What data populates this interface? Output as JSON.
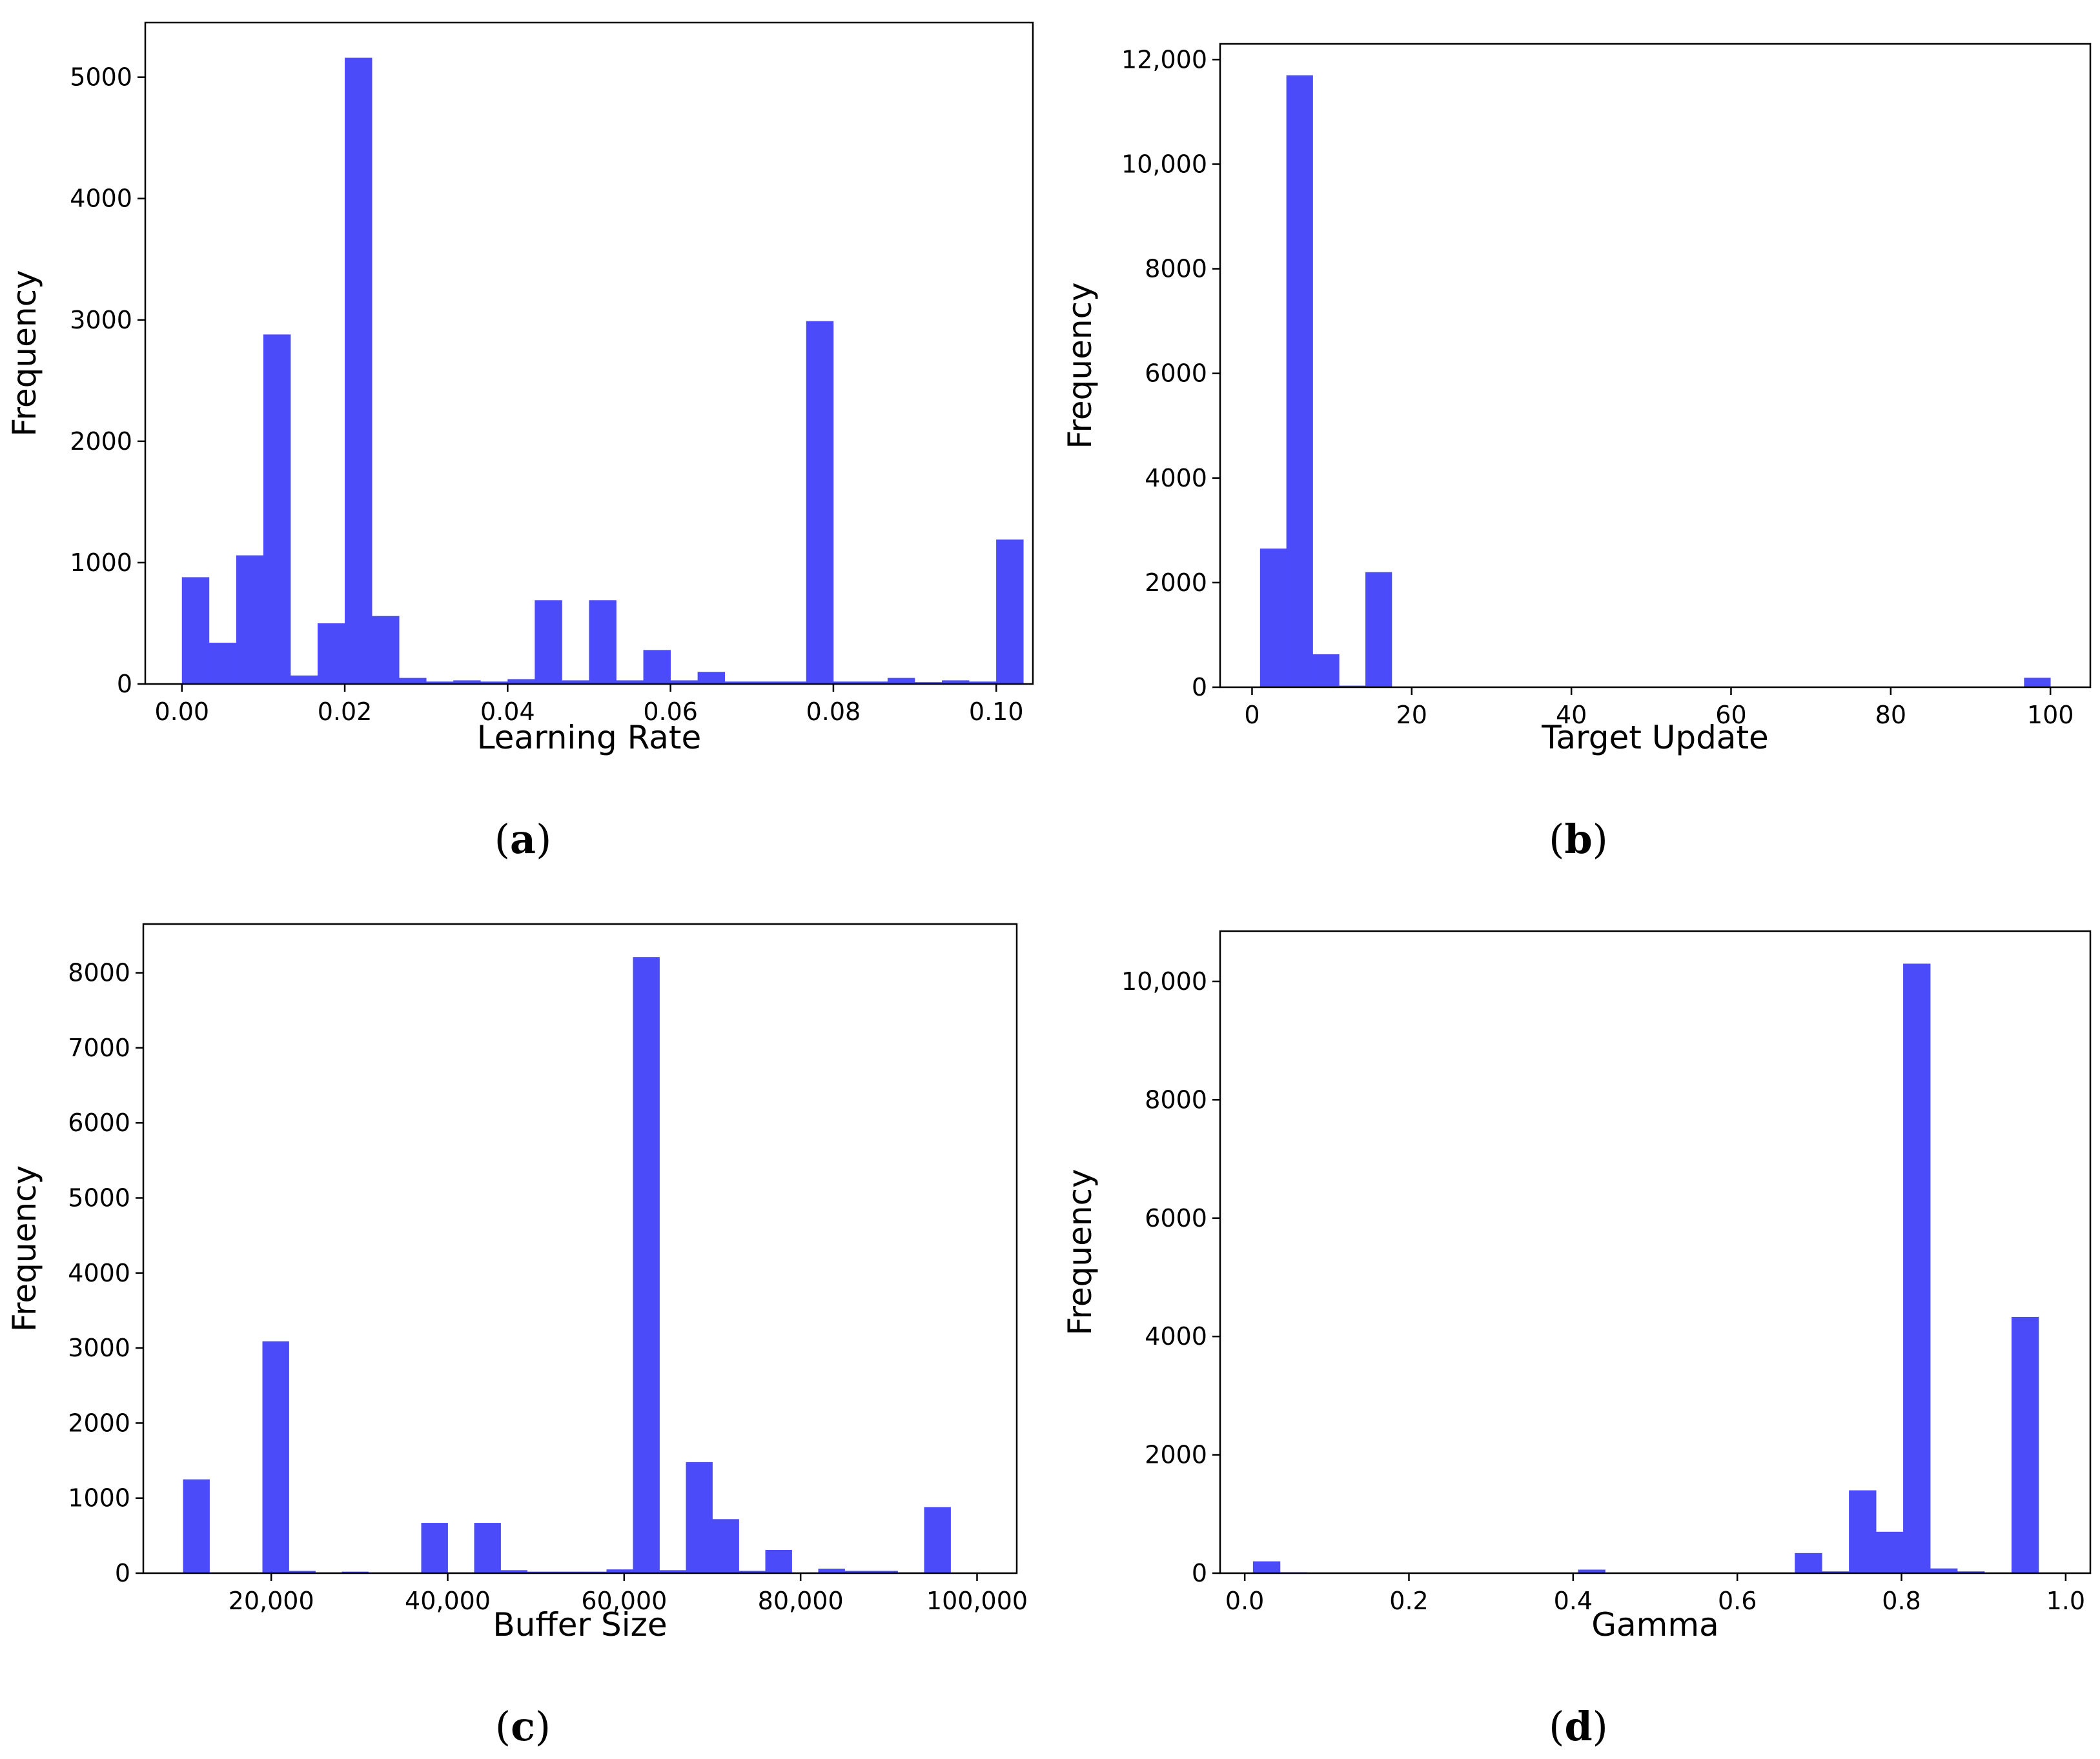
{
  "chart_data": [
    {
      "id": "a",
      "type": "bar",
      "caption_letter": "a",
      "title": "",
      "xlabel": "Learning Rate",
      "ylabel": "Frequency",
      "xlim": [
        -0.0045,
        0.1045
      ],
      "ylim": [
        0,
        5450
      ],
      "xticks": [
        0.0,
        0.02,
        0.04,
        0.06,
        0.08,
        0.1
      ],
      "xtick_labels": [
        "0.00",
        "0.02",
        "0.04",
        "0.06",
        "0.08",
        "0.10"
      ],
      "yticks": [
        0,
        1000,
        2000,
        3000,
        4000,
        5000
      ],
      "ytick_labels": [
        "0",
        "1000",
        "2000",
        "3000",
        "4000",
        "5000"
      ],
      "bin_start": 0.0,
      "bin_width": 0.003333,
      "values": [
        880,
        340,
        1060,
        2880,
        70,
        500,
        5160,
        560,
        50,
        20,
        30,
        20,
        40,
        690,
        30,
        690,
        30,
        280,
        30,
        100,
        20,
        20,
        20,
        2990,
        20,
        20,
        50,
        15,
        30,
        20,
        1190
      ]
    },
    {
      "id": "b",
      "type": "bar",
      "caption_letter": "b",
      "title": "",
      "xlabel": "Target Update",
      "ylabel": "Frequency",
      "xlim": [
        -4,
        105
      ],
      "ylim": [
        0,
        12300
      ],
      "xticks": [
        0,
        20,
        40,
        60,
        80,
        100
      ],
      "xtick_labels": [
        "0",
        "20",
        "40",
        "60",
        "80",
        "100"
      ],
      "yticks": [
        0,
        2000,
        4000,
        6000,
        8000,
        10000,
        12000
      ],
      "ytick_labels": [
        "0",
        "2000",
        "4000",
        "6000",
        "8000",
        "10,000",
        "12,000"
      ],
      "bin_start": 1,
      "bin_width": 3.3,
      "values": [
        2650,
        11700,
        630,
        30,
        2200,
        10,
        10,
        10,
        10,
        10,
        10,
        10,
        10,
        10,
        10,
        10,
        10,
        10,
        10,
        10,
        10,
        10,
        10,
        10,
        10,
        10,
        10,
        10,
        10,
        180
      ]
    },
    {
      "id": "c",
      "type": "bar",
      "caption_letter": "c",
      "title": "",
      "xlabel": "Buffer Size",
      "ylabel": "Frequency",
      "xlim": [
        5500,
        104500
      ],
      "ylim": [
        0,
        8650
      ],
      "xticks": [
        20000,
        40000,
        60000,
        80000,
        100000
      ],
      "xtick_labels": [
        "20,000",
        "40,000",
        "60,000",
        "80,000",
        "100,000"
      ],
      "yticks": [
        0,
        1000,
        2000,
        3000,
        4000,
        5000,
        6000,
        7000,
        8000
      ],
      "ytick_labels": [
        "0",
        "1000",
        "2000",
        "3000",
        "4000",
        "5000",
        "6000",
        "7000",
        "8000"
      ],
      "bin_start": 10000,
      "bin_width": 3000,
      "values": [
        1250,
        10,
        10,
        3090,
        30,
        10,
        20,
        10,
        10,
        670,
        10,
        670,
        40,
        20,
        20,
        20,
        50,
        8210,
        40,
        1480,
        720,
        30,
        310,
        10,
        60,
        30,
        30,
        10,
        880
      ]
    },
    {
      "id": "d",
      "type": "bar",
      "caption_letter": "d",
      "title": "",
      "xlabel": "Gamma",
      "ylabel": "Frequency",
      "xlim": [
        -0.03,
        1.03
      ],
      "ylim": [
        0,
        10850
      ],
      "xticks": [
        0.0,
        0.2,
        0.4,
        0.6,
        0.8,
        1.0
      ],
      "xtick_labels": [
        "0.0",
        "0.2",
        "0.4",
        "0.6",
        "0.8",
        "1.0"
      ],
      "yticks": [
        0,
        2000,
        4000,
        6000,
        8000,
        10000
      ],
      "ytick_labels": [
        "0",
        "2000",
        "4000",
        "6000",
        "8000",
        "10,000"
      ],
      "bin_start": 0.01,
      "bin_width": 0.033,
      "values": [
        200,
        15,
        10,
        10,
        10,
        10,
        10,
        10,
        10,
        10,
        10,
        10,
        60,
        10,
        10,
        10,
        10,
        10,
        10,
        10,
        340,
        30,
        1400,
        700,
        10300,
        80,
        30,
        10,
        4330
      ]
    }
  ]
}
